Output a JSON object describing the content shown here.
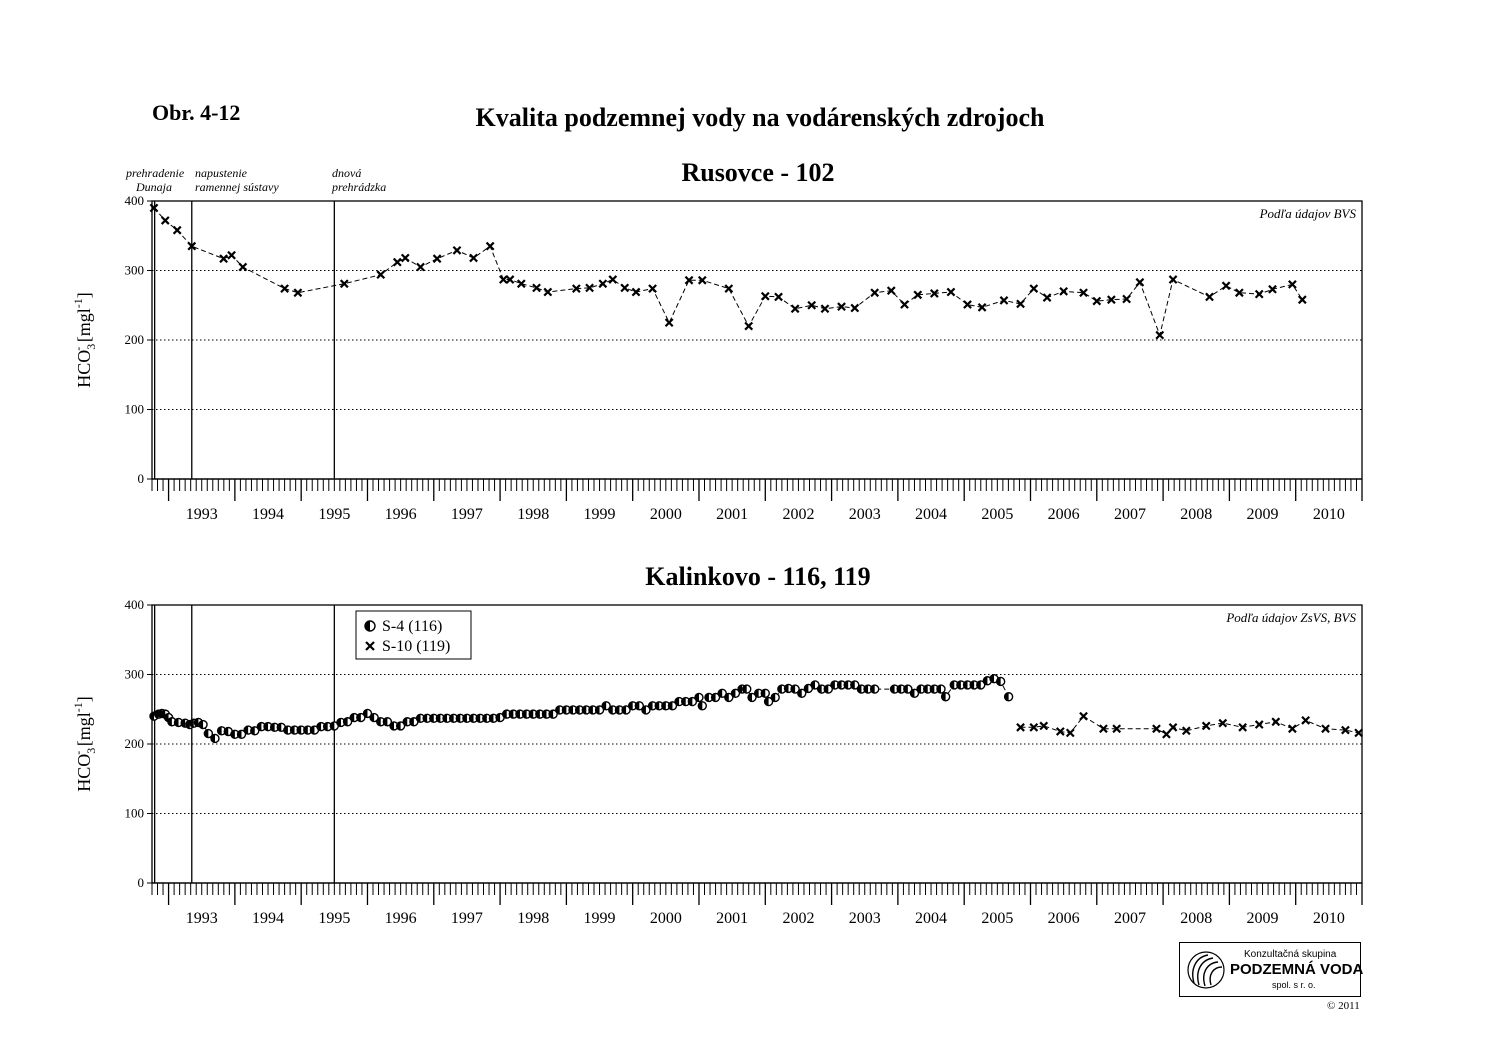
{
  "figure_label": "Obr. 4-12",
  "main_title": "Kvalita podzemnej vody na vodárenských zdrojoch",
  "events": [
    {
      "line1": "prehradenie",
      "line2": "Dunaja",
      "x": 1992.79
    },
    {
      "line1": "napustenie",
      "line2": "ramennej sústavy",
      "x": 1993.35
    },
    {
      "line1": "dnová",
      "line2": "prehrádzka",
      "x": 1995.5
    }
  ],
  "chart_data": [
    {
      "type": "line",
      "title": "Rusovce - 102",
      "source_note": "Podľa údajov BVS",
      "ylabel": "HCO3- [mgl-1]",
      "ylabel_main": "HCO",
      "ylabel_sub": "3",
      "ylabel_sup": "-",
      "ylabel_unit": "[mgl",
      "ylabel_unit_sup": "-1",
      "ylabel_close": "]",
      "xlim": [
        1992.75,
        2011.0
      ],
      "ylim": [
        0,
        400
      ],
      "yticks": [
        0,
        100,
        200,
        300,
        400
      ],
      "year_labels": [
        "1993",
        "1994",
        "1995",
        "1996",
        "1997",
        "1998",
        "1999",
        "2000",
        "2001",
        "2002",
        "2003",
        "2004",
        "2005",
        "2006",
        "2007",
        "2008",
        "2009",
        "2010"
      ],
      "grid": "dotted",
      "series": [
        {
          "marker": "x",
          "points": [
            [
              1992.78,
              390
            ],
            [
              1992.95,
              372
            ],
            [
              1993.13,
              358
            ],
            [
              1993.35,
              335
            ],
            [
              1993.83,
              317
            ],
            [
              1993.95,
              322
            ],
            [
              1994.12,
              305
            ],
            [
              1994.75,
              274
            ],
            [
              1994.95,
              268
            ],
            [
              1995.65,
              281
            ],
            [
              1996.2,
              294
            ],
            [
              1996.45,
              312
            ],
            [
              1996.57,
              318
            ],
            [
              1996.8,
              305
            ],
            [
              1997.05,
              317
            ],
            [
              1997.35,
              329
            ],
            [
              1997.6,
              318
            ],
            [
              1997.85,
              335
            ],
            [
              1998.05,
              287
            ],
            [
              1998.15,
              287
            ],
            [
              1998.32,
              281
            ],
            [
              1998.55,
              275
            ],
            [
              1998.72,
              269
            ],
            [
              1999.15,
              274
            ],
            [
              1999.35,
              275
            ],
            [
              1999.55,
              281
            ],
            [
              1999.7,
              287
            ],
            [
              1999.88,
              275
            ],
            [
              2000.05,
              269
            ],
            [
              2000.3,
              274
            ],
            [
              2000.55,
              225
            ],
            [
              2000.85,
              286
            ],
            [
              2001.05,
              286
            ],
            [
              2001.45,
              274
            ],
            [
              2001.75,
              220
            ],
            [
              2002.0,
              263
            ],
            [
              2002.2,
              262
            ],
            [
              2002.45,
              245
            ],
            [
              2002.7,
              250
            ],
            [
              2002.9,
              245
            ],
            [
              2003.15,
              248
            ],
            [
              2003.35,
              246
            ],
            [
              2003.65,
              268
            ],
            [
              2003.9,
              271
            ],
            [
              2004.1,
              251
            ],
            [
              2004.3,
              265
            ],
            [
              2004.55,
              267
            ],
            [
              2004.8,
              269
            ],
            [
              2005.05,
              251
            ],
            [
              2005.27,
              247
            ],
            [
              2005.6,
              257
            ],
            [
              2005.85,
              252
            ],
            [
              2006.05,
              274
            ],
            [
              2006.25,
              261
            ],
            [
              2006.5,
              270
            ],
            [
              2006.8,
              268
            ],
            [
              2007.0,
              256
            ],
            [
              2007.22,
              258
            ],
            [
              2007.45,
              259
            ],
            [
              2007.65,
              283
            ],
            [
              2007.95,
              207
            ],
            [
              2008.15,
              287
            ],
            [
              2008.7,
              262
            ],
            [
              2008.95,
              278
            ],
            [
              2009.15,
              268
            ],
            [
              2009.45,
              266
            ],
            [
              2009.65,
              273
            ],
            [
              2009.95,
              280
            ],
            [
              2010.1,
              258
            ]
          ]
        }
      ]
    },
    {
      "type": "line",
      "title": "Kalinkovo - 116, 119",
      "source_note": "Podľa údajov ZsVS, BVS",
      "ylabel": "HCO3- [mgl-1]",
      "xlim": [
        1992.75,
        2011.0
      ],
      "ylim": [
        0,
        400
      ],
      "yticks": [
        0,
        100,
        200,
        300,
        400
      ],
      "year_labels": [
        "1993",
        "1994",
        "1995",
        "1996",
        "1997",
        "1998",
        "1999",
        "2000",
        "2001",
        "2002",
        "2003",
        "2004",
        "2005",
        "2006",
        "2007",
        "2008",
        "2009",
        "2010"
      ],
      "grid": "dotted",
      "series": [
        {
          "name": "S-4 (116)",
          "marker": "half-circle",
          "points": [
            [
              1992.78,
              240
            ],
            [
              1992.85,
              243
            ],
            [
              1992.9,
              244
            ],
            [
              1992.95,
              243
            ],
            [
              1993.0,
              238
            ],
            [
              1993.05,
              232
            ],
            [
              1993.15,
              231
            ],
            [
              1993.25,
              230
            ],
            [
              1993.32,
              228
            ],
            [
              1993.38,
              230
            ],
            [
              1993.45,
              231
            ],
            [
              1993.52,
              228
            ],
            [
              1993.6,
              215
            ],
            [
              1993.7,
              208
            ],
            [
              1993.8,
              219
            ],
            [
              1993.9,
              218
            ],
            [
              1994.0,
              214
            ],
            [
              1994.1,
              214
            ],
            [
              1994.2,
              220
            ],
            [
              1994.3,
              219
            ],
            [
              1994.4,
              225
            ],
            [
              1994.5,
              225
            ],
            [
              1994.6,
              224
            ],
            [
              1994.7,
              224
            ],
            [
              1994.8,
              220
            ],
            [
              1994.9,
              220
            ],
            [
              1995.0,
              220
            ],
            [
              1995.1,
              220
            ],
            [
              1995.2,
              220
            ],
            [
              1995.3,
              225
            ],
            [
              1995.4,
              225
            ],
            [
              1995.5,
              226
            ],
            [
              1995.6,
              231
            ],
            [
              1995.7,
              232
            ],
            [
              1995.8,
              238
            ],
            [
              1995.9,
              238
            ],
            [
              1996.0,
              244
            ],
            [
              1996.1,
              238
            ],
            [
              1996.2,
              232
            ],
            [
              1996.3,
              232
            ],
            [
              1996.4,
              226
            ],
            [
              1996.5,
              226
            ],
            [
              1996.6,
              232
            ],
            [
              1996.7,
              232
            ],
            [
              1996.8,
              237
            ],
            [
              1996.9,
              237
            ],
            [
              1997.0,
              237
            ],
            [
              1997.1,
              237
            ],
            [
              1997.2,
              237
            ],
            [
              1997.3,
              237
            ],
            [
              1997.4,
              237
            ],
            [
              1997.5,
              237
            ],
            [
              1997.6,
              237
            ],
            [
              1997.7,
              237
            ],
            [
              1997.8,
              237
            ],
            [
              1997.9,
              237
            ],
            [
              1998.0,
              238
            ],
            [
              1998.1,
              243
            ],
            [
              1998.2,
              243
            ],
            [
              1998.3,
              243
            ],
            [
              1998.4,
              243
            ],
            [
              1998.5,
              243
            ],
            [
              1998.6,
              243
            ],
            [
              1998.7,
              243
            ],
            [
              1998.8,
              243
            ],
            [
              1998.9,
              249
            ],
            [
              1999.0,
              249
            ],
            [
              1999.1,
              249
            ],
            [
              1999.2,
              249
            ],
            [
              1999.3,
              249
            ],
            [
              1999.4,
              249
            ],
            [
              1999.5,
              249
            ],
            [
              1999.6,
              255
            ],
            [
              1999.7,
              249
            ],
            [
              1999.8,
              249
            ],
            [
              1999.9,
              249
            ],
            [
              2000.0,
              255
            ],
            [
              2000.1,
              255
            ],
            [
              2000.2,
              249
            ],
            [
              2000.3,
              255
            ],
            [
              2000.4,
              255
            ],
            [
              2000.5,
              255
            ],
            [
              2000.6,
              255
            ],
            [
              2000.7,
              261
            ],
            [
              2000.8,
              261
            ],
            [
              2000.9,
              261
            ],
            [
              2001.0,
              267
            ],
            [
              2001.05,
              255
            ],
            [
              2001.15,
              267
            ],
            [
              2001.25,
              267
            ],
            [
              2001.35,
              273
            ],
            [
              2001.45,
              267
            ],
            [
              2001.55,
              273
            ],
            [
              2001.65,
              279
            ],
            [
              2001.72,
              279
            ],
            [
              2001.8,
              267
            ],
            [
              2001.9,
              273
            ],
            [
              2002.0,
              273
            ],
            [
              2002.05,
              261
            ],
            [
              2002.15,
              267
            ],
            [
              2002.25,
              279
            ],
            [
              2002.35,
              280
            ],
            [
              2002.45,
              279
            ],
            [
              2002.55,
              273
            ],
            [
              2002.65,
              280
            ],
            [
              2002.75,
              285
            ],
            [
              2002.85,
              279
            ],
            [
              2002.95,
              279
            ],
            [
              2003.05,
              285
            ],
            [
              2003.15,
              285
            ],
            [
              2003.25,
              285
            ],
            [
              2003.35,
              285
            ],
            [
              2003.45,
              279
            ],
            [
              2003.55,
              279
            ],
            [
              2003.65,
              279
            ],
            [
              2003.95,
              279
            ],
            [
              2004.05,
              279
            ],
            [
              2004.15,
              279
            ],
            [
              2004.25,
              273
            ],
            [
              2004.35,
              279
            ],
            [
              2004.45,
              279
            ],
            [
              2004.55,
              279
            ],
            [
              2004.65,
              279
            ],
            [
              2004.72,
              268
            ],
            [
              2004.85,
              285
            ],
            [
              2004.95,
              285
            ],
            [
              2005.05,
              285
            ],
            [
              2005.15,
              285
            ],
            [
              2005.25,
              285
            ],
            [
              2005.35,
              291
            ],
            [
              2005.45,
              294
            ],
            [
              2005.55,
              290
            ],
            [
              2005.67,
              268
            ]
          ]
        },
        {
          "name": "S-10 (119)",
          "marker": "x",
          "points": [
            [
              2005.85,
              224
            ],
            [
              2006.05,
              224
            ],
            [
              2006.2,
              226
            ],
            [
              2006.45,
              218
            ],
            [
              2006.6,
              216
            ],
            [
              2006.8,
              240
            ],
            [
              2007.1,
              222
            ],
            [
              2007.3,
              222
            ],
            [
              2007.9,
              222
            ],
            [
              2008.05,
              214
            ],
            [
              2008.15,
              224
            ],
            [
              2008.35,
              219
            ],
            [
              2008.65,
              226
            ],
            [
              2008.9,
              230
            ],
            [
              2009.2,
              224
            ],
            [
              2009.45,
              228
            ],
            [
              2009.7,
              232
            ],
            [
              2009.95,
              222
            ],
            [
              2010.15,
              234
            ],
            [
              2010.45,
              222
            ],
            [
              2010.75,
              220
            ],
            [
              2010.95,
              216
            ]
          ]
        }
      ]
    }
  ],
  "logo": {
    "line1": "Konzultačná skupina",
    "line2": "PODZEMNÁ VODA",
    "line3": "spol. s r. o."
  },
  "copyright": "© 2011"
}
